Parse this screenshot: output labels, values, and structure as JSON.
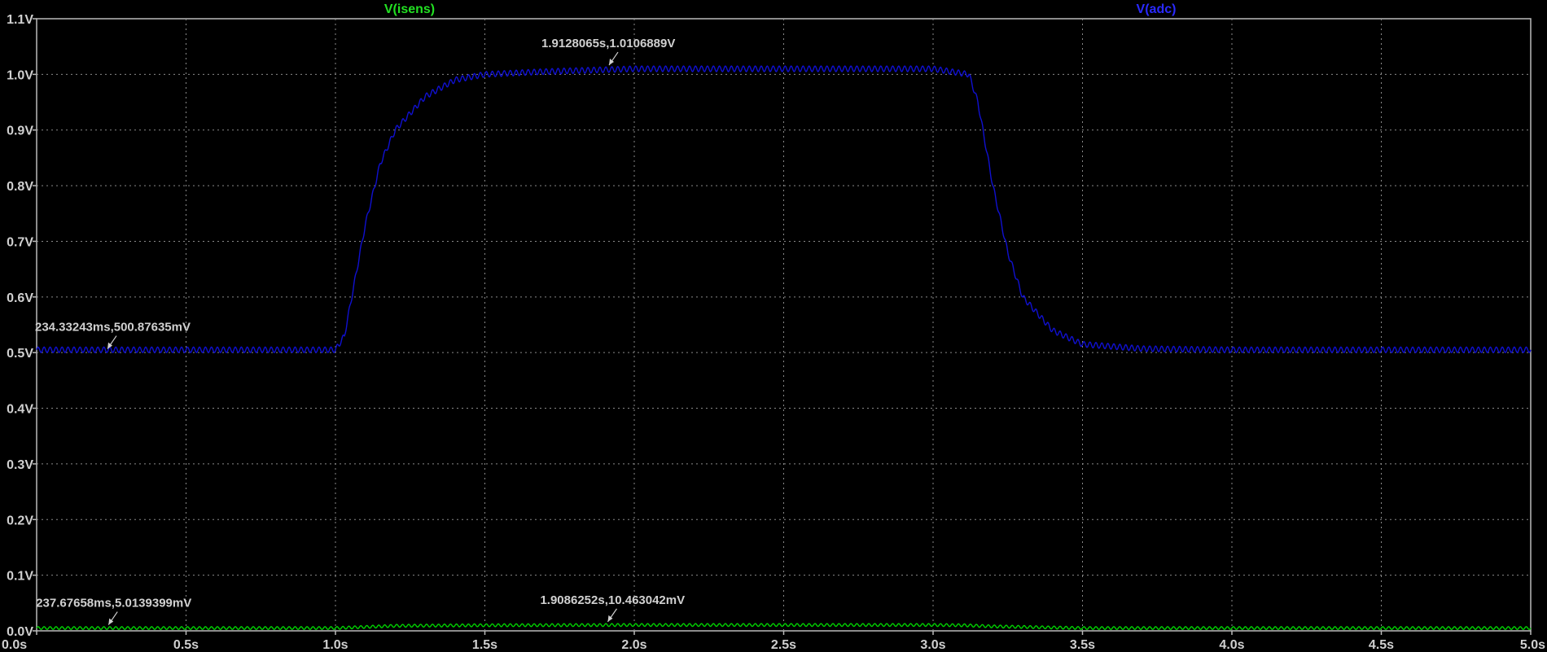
{
  "chart_data": {
    "type": "line",
    "xlim": [
      0,
      5
    ],
    "ylim": [
      0,
      1.1
    ],
    "x_ticks": [
      "0.0s",
      "0.5s",
      "1.0s",
      "1.5s",
      "2.0s",
      "2.5s",
      "3.0s",
      "3.5s",
      "4.0s",
      "4.5s",
      "5.0s"
    ],
    "y_ticks": [
      "0.0V",
      "0.1V",
      "0.2V",
      "0.3V",
      "0.4V",
      "0.5V",
      "0.6V",
      "0.7V",
      "0.8V",
      "0.9V",
      "1.0V",
      "1.1V"
    ],
    "grid": true,
    "background": "#000000",
    "series": [
      {
        "name": "V(isens)",
        "color": "#00d000",
        "x": [
          0,
          1.0,
          1.05,
          1.2,
          1.5,
          2.0,
          2.5,
          3.0,
          3.1,
          3.2,
          3.5,
          4.0,
          5.0
        ],
        "y": [
          0.005,
          0.005,
          0.006,
          0.009,
          0.01,
          0.0105,
          0.0105,
          0.0105,
          0.01,
          0.008,
          0.005,
          0.005,
          0.005
        ],
        "ripple": 0.005
      },
      {
        "name": "V(adc)",
        "color": "#1010d0",
        "x": [
          0,
          1.0,
          1.03,
          1.1,
          1.15,
          1.2,
          1.3,
          1.4,
          1.5,
          1.7,
          2.0,
          2.5,
          3.0,
          3.12,
          3.15,
          3.2,
          3.25,
          3.3,
          3.4,
          3.5,
          3.7,
          4.0,
          5.0
        ],
        "y": [
          0.505,
          0.505,
          0.53,
          0.73,
          0.84,
          0.9,
          0.96,
          0.99,
          1.0,
          1.005,
          1.01,
          1.01,
          1.01,
          1.0,
          0.95,
          0.8,
          0.68,
          0.6,
          0.54,
          0.515,
          0.507,
          0.505,
          0.505
        ],
        "ripple": 0.01
      }
    ],
    "annotations": [
      {
        "label": "234.33243ms,500.87635mV",
        "x": 0.23433,
        "y": 0.50088
      },
      {
        "label": "1.9128065s,1.0106889V",
        "x": 1.91281,
        "y": 1.01069
      },
      {
        "label": "237.67658ms,5.0139399mV",
        "x": 0.23768,
        "y": 0.00501
      },
      {
        "label": "1.9086252s,10.463042mV",
        "x": 1.90863,
        "y": 0.01046
      }
    ]
  }
}
